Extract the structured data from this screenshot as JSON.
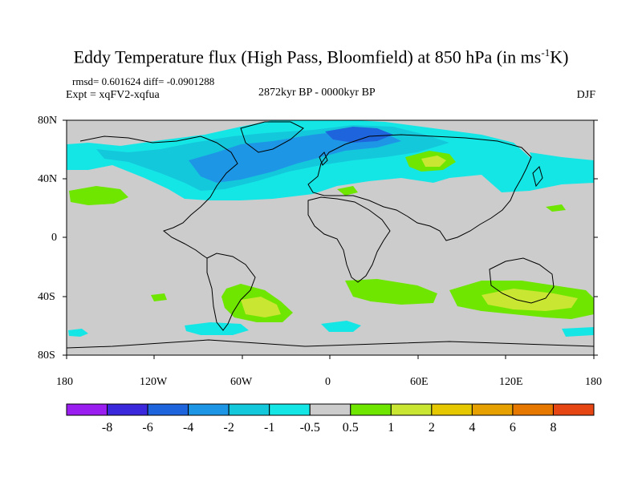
{
  "title": {
    "text_main": "Eddy Temperature flux (High Pass, Bloomfield) at 850 hPa (in ms",
    "superscript": "-1",
    "text_end": "K)"
  },
  "stats": {
    "rmsd_line": "rmsd= 0.601624 diff= -0.0901288",
    "expt_line": "Expt = xqFV2-xqfua"
  },
  "period": "2872kyr BP - 0000kyr BP",
  "season": "DJF",
  "latitude_labels": [
    "80N",
    "40N",
    "0",
    "40S",
    "80S"
  ],
  "longitude_labels": [
    "180",
    "120W",
    "60W",
    "0",
    "60E",
    "120E",
    "180"
  ],
  "colorbar": {
    "labels": [
      "-8",
      "-6",
      "-4",
      "-2",
      "-1",
      "-0.5",
      "0.5",
      "1",
      "2",
      "4",
      "6",
      "8"
    ],
    "colors": [
      "#9a1ef0",
      "#3c28dc",
      "#1e64dc",
      "#1e96e6",
      "#14c8dc",
      "#14e6e6",
      "#cccccc",
      "#6ee600",
      "#c8e632",
      "#e6c800",
      "#e6a000",
      "#e67800",
      "#e64614"
    ]
  },
  "map_colors": {
    "background": "#cccccc",
    "coast": "#000000",
    "neg_weak": "#14e6e6",
    "neg_mid": "#14c8dc",
    "neg_strong": "#1e96e6",
    "neg_vstrong": "#1e64dc",
    "pos_weak": "#6ee600",
    "pos_mid": "#c8e632"
  }
}
